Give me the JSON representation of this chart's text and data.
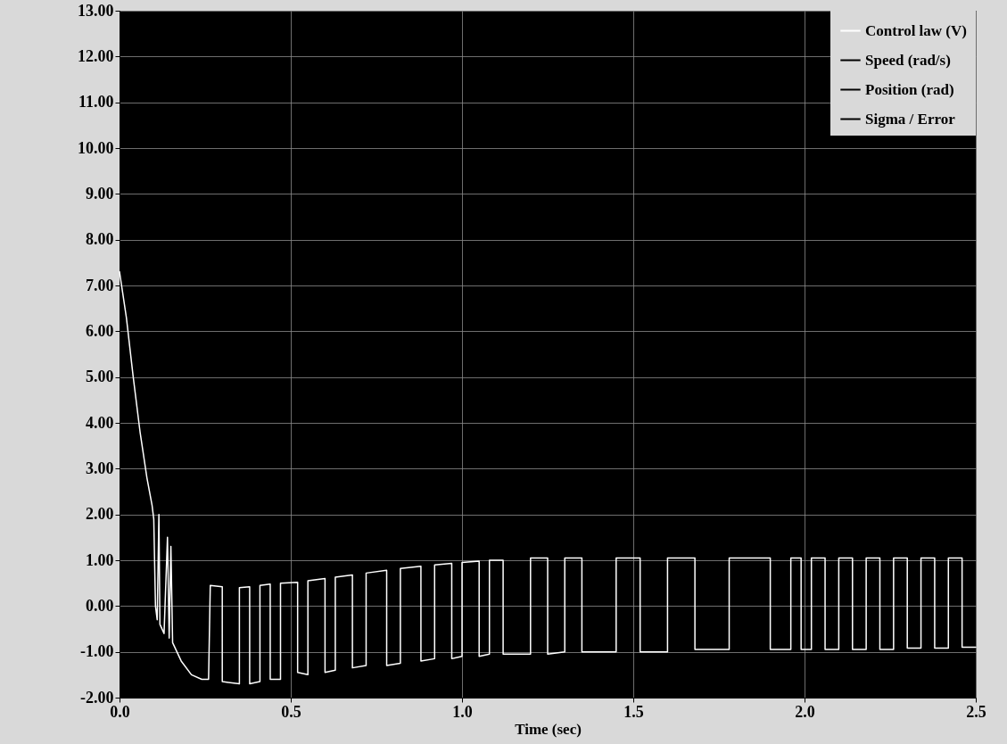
{
  "chart_data": {
    "type": "line",
    "xlabel": "Time (sec)",
    "xlim": [
      0,
      2.5
    ],
    "xticks": [
      {
        "value": 0,
        "label": "0.0"
      },
      {
        "value": 0.5,
        "label": "0.5"
      },
      {
        "value": 1,
        "label": "1.0"
      },
      {
        "value": 1.5,
        "label": "1.5"
      },
      {
        "value": 2,
        "label": "2.0"
      },
      {
        "value": 2.5,
        "label": "2.5"
      }
    ],
    "ylim": [
      -2,
      13
    ],
    "yticks": [
      {
        "value": -2,
        "label": "-2.00"
      },
      {
        "value": -1,
        "label": "-1.00"
      },
      {
        "value": 0,
        "label": "0.00"
      },
      {
        "value": 1,
        "label": "1.00"
      },
      {
        "value": 2,
        "label": "2.00"
      },
      {
        "value": 3,
        "label": "3.00"
      },
      {
        "value": 4,
        "label": "4.00"
      },
      {
        "value": 5,
        "label": "5.00"
      },
      {
        "value": 6,
        "label": "6.00"
      },
      {
        "value": 7,
        "label": "7.00"
      },
      {
        "value": 8,
        "label": "8.00"
      },
      {
        "value": 9,
        "label": "9.00"
      },
      {
        "value": 10,
        "label": "10.00"
      },
      {
        "value": 11,
        "label": "11.00"
      },
      {
        "value": 12,
        "label": "12.00"
      },
      {
        "value": 13,
        "label": "13.00"
      }
    ],
    "grid": true,
    "legend": "top right",
    "line_style": "solid",
    "series": [
      {
        "name": "Control law (V)",
        "color": "#ffffff",
        "x": [
          0,
          0.02,
          0.04,
          0.06,
          0.08,
          0.095,
          0.1,
          0.105,
          0.11,
          0.115,
          0.118,
          0.13,
          0.14,
          0.145,
          0.15,
          0.155,
          0.18,
          0.21,
          0.24,
          0.26,
          0.265,
          0.3,
          0.3,
          0.35,
          0.35,
          0.38,
          0.38,
          0.41,
          0.41,
          0.44,
          0.44,
          0.47,
          0.47,
          0.52,
          0.52,
          0.55,
          0.55,
          0.6,
          0.6,
          0.63,
          0.63,
          0.68,
          0.68,
          0.72,
          0.72,
          0.78,
          0.78,
          0.82,
          0.82,
          0.88,
          0.88,
          0.92,
          0.92,
          0.97,
          0.97,
          1.0,
          1.0,
          1.05,
          1.05,
          1.08,
          1.08,
          1.12,
          1.12,
          1.2,
          1.2,
          1.25,
          1.25,
          1.3,
          1.3,
          1.35,
          1.35,
          1.45,
          1.45,
          1.52,
          1.52,
          1.6,
          1.6,
          1.68,
          1.68,
          1.78,
          1.78,
          1.9,
          1.9,
          1.96,
          1.96,
          1.99,
          1.99,
          2.02,
          2.02,
          2.06,
          2.06,
          2.1,
          2.1,
          2.14,
          2.14,
          2.18,
          2.18,
          2.22,
          2.22,
          2.26,
          2.26,
          2.3,
          2.3,
          2.34,
          2.34,
          2.38,
          2.38,
          2.42,
          2.42,
          2.46,
          2.46,
          2.5
        ],
        "values": [
          7.3,
          6.3,
          5.0,
          3.8,
          2.8,
          2.2,
          1.9,
          0.0,
          -0.3,
          2.0,
          -0.4,
          -0.6,
          1.5,
          -0.7,
          1.3,
          -0.8,
          -1.2,
          -1.5,
          -1.6,
          -1.6,
          0.45,
          0.42,
          -1.65,
          -1.7,
          0.4,
          0.42,
          -1.7,
          -1.65,
          0.45,
          0.48,
          -1.6,
          -1.6,
          0.5,
          0.52,
          -1.45,
          -1.5,
          0.55,
          0.6,
          -1.45,
          -1.4,
          0.63,
          0.68,
          -1.35,
          -1.3,
          0.72,
          0.78,
          -1.3,
          -1.25,
          0.82,
          0.87,
          -1.2,
          -1.15,
          0.9,
          0.93,
          -1.15,
          -1.1,
          0.95,
          0.98,
          -1.1,
          -1.05,
          1.0,
          1.0,
          -1.05,
          -1.05,
          1.05,
          1.05,
          -1.05,
          -1.0,
          1.05,
          1.05,
          -1.0,
          -1.0,
          1.05,
          1.05,
          -1.0,
          -1.0,
          1.05,
          1.05,
          -0.95,
          -0.95,
          1.05,
          1.05,
          -0.95,
          -0.95,
          1.05,
          1.05,
          -0.95,
          -0.95,
          1.05,
          1.05,
          -0.95,
          -0.95,
          1.05,
          1.05,
          -0.95,
          -0.95,
          1.05,
          1.05,
          -0.95,
          -0.95,
          1.05,
          1.05,
          -0.92,
          -0.92,
          1.05,
          1.05,
          -0.92,
          -0.92,
          1.05,
          1.05,
          -0.9,
          -0.9
        ]
      },
      {
        "name": "Speed (rad/s)",
        "color": "#000000"
      },
      {
        "name": "Position (rad)",
        "color": "#000000"
      },
      {
        "name": "Sigma / Error",
        "color": "#000000"
      }
    ]
  }
}
